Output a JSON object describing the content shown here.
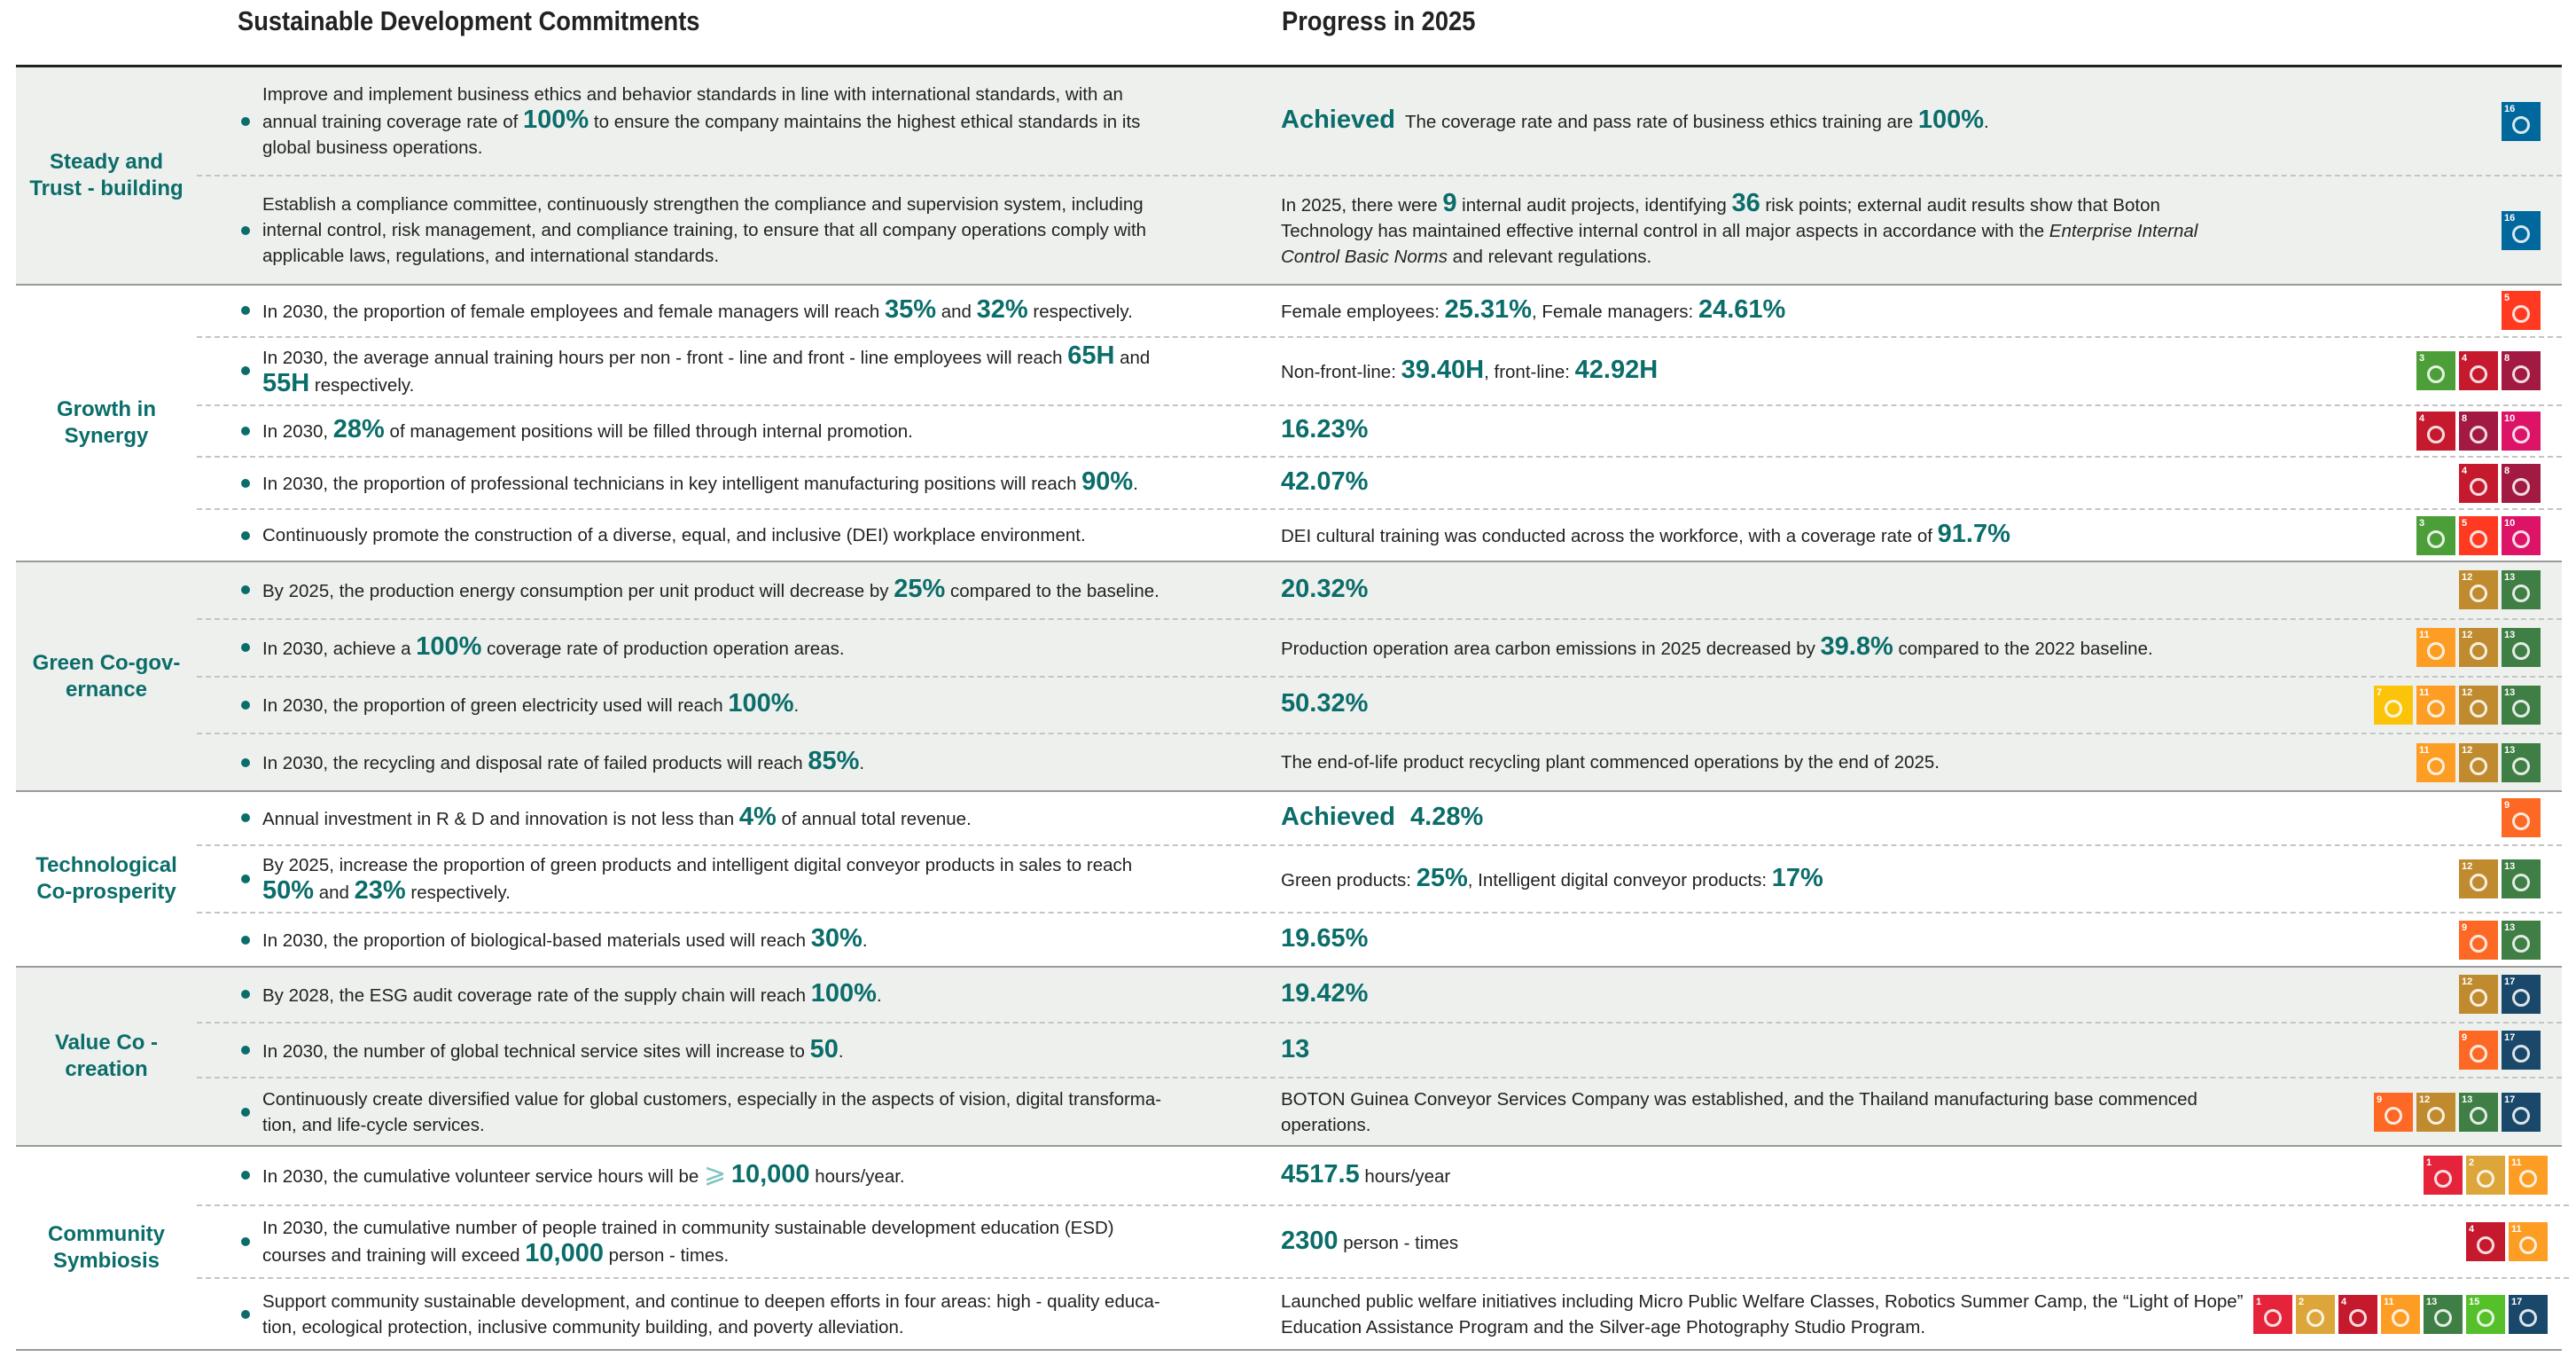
{
  "header": {
    "commitments": "Sustainable Development Commitments",
    "progress": "Progress in 2025"
  },
  "sections": [
    {
      "label": "Steady and Trust - building",
      "rows": [
        {
          "commitment": [
            "Improve and implement business ethics and behavior standards in line with international standards, with an annual training coverage rate of ",
            {
              "strong": "100%"
            },
            " to ensure the company maintains the highest ethical standards in its global business operations."
          ],
          "progress": [
            {
              "strong": "Achieved"
            },
            "  The coverage rate and pass rate of business ethics training are ",
            {
              "strong": "100%"
            },
            "."
          ],
          "sdgs": [
            16
          ]
        },
        {
          "commitment": [
            "Establish a compliance committee, continuously strengthen the compliance and supervision system, including internal control, risk management, and compliance training, to ensure that all company operations comply with applicable laws, regulations, and international standards."
          ],
          "progress": [
            "In 2025, there were ",
            {
              "strong": "9"
            },
            " internal audit projects, identifying ",
            {
              "strong": "36"
            },
            " risk points; external audit results show that Boton Technology has maintained effective internal control in all major aspects in accordance with the ",
            {
              "em": "Enterprise Internal Control Basic Norms"
            },
            " and relevant regulations."
          ],
          "sdgs": [
            16
          ]
        }
      ]
    },
    {
      "label": "Growth in Synergy",
      "rows": [
        {
          "commitment": [
            "In 2030, the proportion of female employees and female managers will reach ",
            {
              "strong": "35%"
            },
            " and ",
            {
              "strong": "32%"
            },
            " respectively."
          ],
          "progress": [
            "Female employees: ",
            {
              "strong": "25.31%"
            },
            ", Female managers: ",
            {
              "strong": "24.61%"
            }
          ],
          "sdgs": [
            5
          ]
        },
        {
          "commitment": [
            "In 2030, the average annual training hours per non - front - line and front - line employees will reach ",
            {
              "strong": "65H"
            },
            " and ",
            {
              "strong": "55H"
            },
            " respectively."
          ],
          "progress": [
            "Non-front-line: ",
            {
              "strong": "39.40H"
            },
            ", front-line: ",
            {
              "strong": "42.92H"
            }
          ],
          "sdgs": [
            3,
            4,
            8
          ]
        },
        {
          "commitment": [
            "In 2030, ",
            {
              "strong": "28%"
            },
            " of management positions will be filled through internal promotion."
          ],
          "progress": [
            {
              "strong": "16.23%"
            }
          ],
          "sdgs": [
            4,
            8,
            10
          ]
        },
        {
          "commitment": [
            "In 2030, the proportion of professional technicians in key intelligent manufacturing positions will reach ",
            {
              "strong": "90%"
            },
            "."
          ],
          "progress": [
            {
              "strong": "42.07%"
            }
          ],
          "sdgs": [
            4,
            8
          ]
        },
        {
          "commitment": [
            "Continuously promote the construction of a diverse, equal, and inclusive (DEI) workplace environment."
          ],
          "progress": [
            "DEI cultural training was conducted across the workforce, with a coverage rate of ",
            {
              "strong": "91.7%"
            }
          ],
          "sdgs": [
            3,
            5,
            10
          ]
        }
      ]
    },
    {
      "label": "Green Co-gov-ernance",
      "rows": [
        {
          "commitment": [
            "By 2025, the production energy consumption per unit product will decrease by ",
            {
              "strong": "25%"
            },
            " compared to the baseline."
          ],
          "progress": [
            {
              "strong": "20.32%"
            }
          ],
          "sdgs": [
            12,
            13
          ]
        },
        {
          "commitment": [
            "In 2030, achieve a ",
            {
              "strong": "100%"
            },
            " coverage rate of production operation areas."
          ],
          "progress": [
            "Production operation area carbon emissions in 2025 decreased by ",
            {
              "strong": "39.8%"
            },
            " compared to the 2022 baseline."
          ],
          "sdgs": [
            11,
            12,
            13
          ]
        },
        {
          "commitment": [
            "In 2030, the proportion of green electricity used will reach ",
            {
              "strong": "100%"
            },
            "."
          ],
          "progress": [
            {
              "strong": "50.32%"
            }
          ],
          "sdgs": [
            7,
            11,
            12,
            13
          ]
        },
        {
          "commitment": [
            "In 2030, the recycling and disposal rate of failed products will reach ",
            {
              "strong": "85%"
            },
            "."
          ],
          "progress": [
            "The end-of-life product recycling plant commenced operations by the end of 2025."
          ],
          "sdgs": [
            11,
            12,
            13
          ]
        }
      ]
    },
    {
      "label": "Technological Co-prosperity",
      "rows": [
        {
          "commitment": [
            "Annual investment in R & D and innovation is not less than ",
            {
              "strong": "4%"
            },
            " of annual total revenue."
          ],
          "progress": [
            {
              "strong": "Achieved"
            },
            "   ",
            {
              "strong": "4.28%"
            }
          ],
          "sdgs": [
            9
          ]
        },
        {
          "commitment": [
            "By 2025, increase the proportion of green products and intelligent digital conveyor products in sales to reach ",
            {
              "strong": "50%"
            },
            " and ",
            {
              "strong": "23%"
            },
            " respectively."
          ],
          "progress": [
            "Green products: ",
            {
              "strong": "25%"
            },
            ", Intelligent digital conveyor products: ",
            {
              "strong": "17%"
            }
          ],
          "sdgs": [
            12,
            13
          ]
        },
        {
          "commitment": [
            "In 2030, the proportion of biological-based materials used will reach ",
            {
              "strong": "30%"
            },
            "."
          ],
          "progress": [
            {
              "strong": "19.65%"
            }
          ],
          "sdgs": [
            9,
            13
          ]
        }
      ]
    },
    {
      "label": "Value Co - creation",
      "rows": [
        {
          "commitment": [
            "By 2028, the ESG audit coverage rate of the supply chain will reach ",
            {
              "strong": "100%"
            },
            "."
          ],
          "progress": [
            {
              "strong": "19.42%"
            }
          ],
          "sdgs": [
            12,
            17
          ]
        },
        {
          "commitment": [
            "In 2030, the number of global technical service sites will increase to ",
            {
              "strong": "50"
            },
            "."
          ],
          "progress": [
            {
              "strong": "13"
            }
          ],
          "sdgs": [
            9,
            17
          ]
        },
        {
          "commitment": [
            "Continuously create diversified value for global customers, especially in the aspects of vision, digital transforma-tion, and life-cycle services."
          ],
          "progress": [
            "BOTON Guinea Conveyor Services Company was established, and the Thailand manufacturing base commenced operations."
          ],
          "sdgs": [
            9,
            12,
            13,
            17
          ]
        }
      ]
    },
    {
      "label": "Community Symbiosis",
      "rows": [
        {
          "commitment": [
            "In 2030, the cumulative volunteer service hours will be ",
            {
              "symbol": "⩾"
            },
            " ",
            {
              "strong": "10,000"
            },
            " hours/year."
          ],
          "progress": [
            {
              "strong": "4517.5"
            },
            " hours/year"
          ],
          "sdgs": [
            1,
            2,
            11
          ]
        },
        {
          "commitment": [
            "In 2030, the cumulative number of people trained in community sustainable development education (ESD) courses and training will exceed ",
            {
              "strong": "10,000"
            },
            " person - times."
          ],
          "progress": [
            {
              "strong": "2300"
            },
            " person - times"
          ],
          "sdgs": [
            4,
            11
          ]
        },
        {
          "commitment": [
            "Support community sustainable development, and continue to deepen efforts in four areas: high - quality educa-tion, ecological protection, inclusive community building, and poverty alleviation."
          ],
          "progress": [
            "Launched public welfare initiatives including Micro Public Welfare Classes, Robotics Summer Camp, the “Light of Hope” Education Assistance Program and the Silver-age Photography Studio Program."
          ],
          "sdgs": [
            1,
            2,
            4,
            11,
            13,
            15,
            17
          ]
        }
      ]
    }
  ]
}
